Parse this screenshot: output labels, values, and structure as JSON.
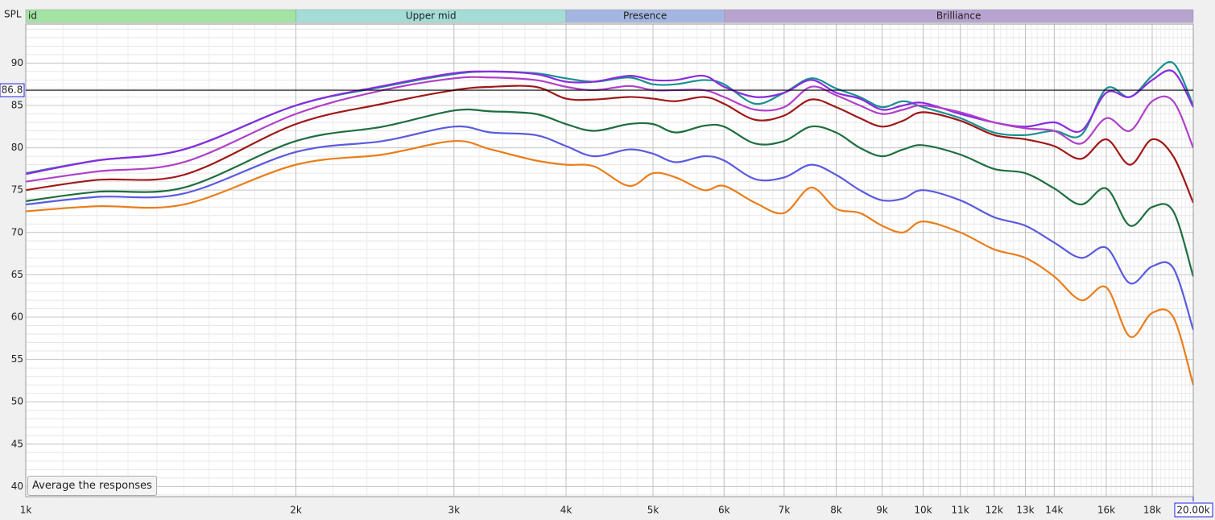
{
  "chart_data": {
    "type": "line",
    "y_label": "SPL",
    "xscale": "log",
    "grid": true,
    "xlim": [
      1000,
      20000
    ],
    "ylim": [
      38.8,
      94.6
    ],
    "xticks": [
      {
        "value": 1000,
        "label": "1k"
      },
      {
        "value": 2000,
        "label": "2k"
      },
      {
        "value": 3000,
        "label": "3k"
      },
      {
        "value": 4000,
        "label": "4k"
      },
      {
        "value": 5000,
        "label": "5k"
      },
      {
        "value": 6000,
        "label": "6k"
      },
      {
        "value": 7000,
        "label": "7k"
      },
      {
        "value": 8000,
        "label": "8k"
      },
      {
        "value": 9000,
        "label": "9k"
      },
      {
        "value": 10000,
        "label": "10k"
      },
      {
        "value": 11000,
        "label": "11k"
      },
      {
        "value": 12000,
        "label": "12k"
      },
      {
        "value": 13000,
        "label": "13k"
      },
      {
        "value": 14000,
        "label": "14k"
      },
      {
        "value": 16000,
        "label": "16k"
      },
      {
        "value": 18000,
        "label": "18k"
      }
    ],
    "yticks": [
      40,
      45,
      50,
      55,
      60,
      65,
      70,
      75,
      80,
      85,
      90
    ],
    "bands": [
      {
        "label": "id",
        "from": 1000,
        "to": 2000,
        "color": "#a3e4a3"
      },
      {
        "label": "Upper mid",
        "from": 2000,
        "to": 4000,
        "color": "#a3ddd6"
      },
      {
        "label": "Presence",
        "from": 4000,
        "to": 6000,
        "color": "#a3b6e2"
      },
      {
        "label": "Brilliance",
        "from": 6000,
        "to": 20000,
        "color": "#b7a3cf"
      }
    ],
    "cursor": {
      "y": 86.8,
      "x": {
        "value": 20000,
        "label": "20.00k"
      }
    },
    "button": "Average the responses",
    "x": [
      1000,
      1200,
      1500,
      2000,
      2500,
      3000,
      3300,
      3700,
      4000,
      4300,
      4700,
      5000,
      5300,
      5700,
      6000,
      6500,
      7000,
      7500,
      8000,
      8500,
      9000,
      9500,
      10000,
      11000,
      12000,
      13000,
      14000,
      15000,
      16000,
      17000,
      18000,
      19000,
      20000
    ],
    "series": [
      {
        "color": "#1a9090",
        "values": [
          77,
          78.5,
          79.8,
          85,
          87.2,
          88.7,
          89,
          88.8,
          88.2,
          87.8,
          88.3,
          87.5,
          87.5,
          88,
          87.5,
          85.2,
          86.5,
          88.2,
          87,
          86,
          84.8,
          85.5,
          84.8,
          83.5,
          81.8,
          81.5,
          82,
          81.5,
          87,
          86,
          88.5,
          90,
          85
        ]
      },
      {
        "color": "#8a2be2",
        "values": [
          76.9,
          78.5,
          79.8,
          85,
          87.3,
          88.8,
          89,
          88.7,
          87.8,
          87.8,
          88.5,
          88,
          88,
          88.5,
          87.2,
          86,
          86.5,
          88,
          86.5,
          85.8,
          84.5,
          85,
          85.3,
          84,
          83,
          82.5,
          83,
          82,
          86.5,
          86,
          88,
          89,
          84.8
        ]
      },
      {
        "color": "#b040c8",
        "values": [
          76,
          77.2,
          78.3,
          84,
          86.8,
          88.2,
          88.3,
          88,
          87.2,
          86.8,
          87.3,
          86.8,
          86.8,
          86.8,
          86,
          84.5,
          84.8,
          87.2,
          86.2,
          85,
          84,
          84.5,
          85,
          84.2,
          83,
          82.3,
          82,
          80.5,
          83.5,
          82,
          85.5,
          85.5,
          80
        ]
      },
      {
        "color": "#a01818",
        "values": [
          75,
          76.2,
          76.8,
          82.8,
          85.2,
          86.8,
          87.2,
          87.2,
          85.8,
          85.7,
          86,
          85.8,
          85.5,
          86,
          85.2,
          83.3,
          83.8,
          85.7,
          84.8,
          83.5,
          82.5,
          83.2,
          84.2,
          83.2,
          81.5,
          81,
          80.2,
          78.7,
          81,
          78,
          81,
          79,
          73.5
        ]
      },
      {
        "color": "#1e6e3e",
        "values": [
          73.7,
          74.8,
          75.3,
          80.8,
          82.5,
          84.4,
          84.3,
          84,
          82.8,
          82,
          82.8,
          82.8,
          81.8,
          82.6,
          82.5,
          80.5,
          80.8,
          82.5,
          81.8,
          80,
          79,
          79.8,
          80.3,
          79.2,
          77.5,
          77,
          75.2,
          73.3,
          75.2,
          70.8,
          73,
          72.5,
          64.8
        ]
      },
      {
        "color": "#5a5ae0",
        "values": [
          73.3,
          74.2,
          74.6,
          79.5,
          80.8,
          82.5,
          81.8,
          81.5,
          80.2,
          79,
          79.8,
          79.3,
          78.3,
          79,
          78.5,
          76.3,
          76.5,
          78,
          76.8,
          75,
          73.8,
          74,
          75,
          73.8,
          71.8,
          70.8,
          68.8,
          67,
          68.2,
          64,
          66,
          65.8,
          58.5
        ]
      },
      {
        "color": "#ea7d1a",
        "values": [
          72.5,
          73.1,
          73.3,
          78,
          79.2,
          80.8,
          79.8,
          78.5,
          78,
          77.8,
          75.5,
          77,
          76.5,
          75,
          75.5,
          73.5,
          72.3,
          75.3,
          72.8,
          72.3,
          70.8,
          70,
          71.3,
          70,
          68,
          67,
          64.8,
          62,
          63.5,
          57.7,
          60.5,
          60,
          52
        ]
      }
    ]
  }
}
